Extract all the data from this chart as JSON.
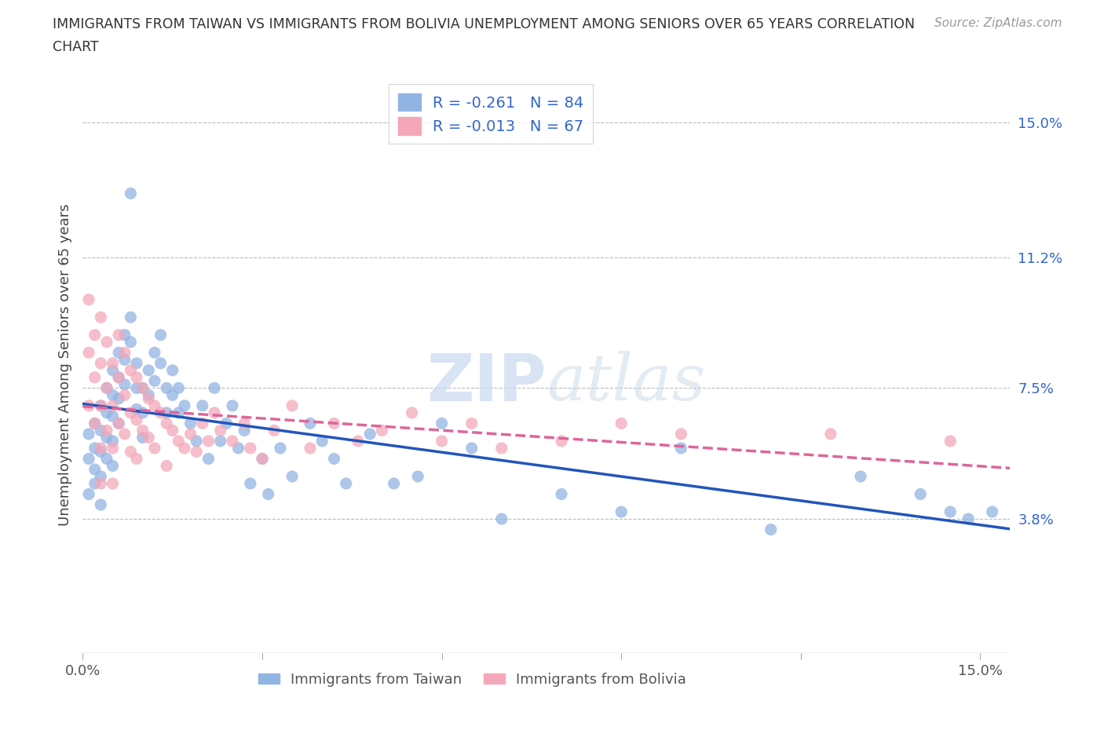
{
  "title_line1": "IMMIGRANTS FROM TAIWAN VS IMMIGRANTS FROM BOLIVIA UNEMPLOYMENT AMONG SENIORS OVER 65 YEARS CORRELATION",
  "title_line2": "CHART",
  "source": "Source: ZipAtlas.com",
  "ylabel_label": "Unemployment Among Seniors over 65 years",
  "ylabel_values": [
    0.038,
    0.075,
    0.112,
    0.15
  ],
  "ylabel_ticks": [
    "3.8%",
    "7.5%",
    "11.2%",
    "15.0%"
  ],
  "xtick_values": [
    0.0,
    0.03,
    0.06,
    0.09,
    0.12,
    0.15
  ],
  "xtick_labels": [
    "0.0%",
    "",
    "",
    "",
    "",
    "15.0%"
  ],
  "xmin": 0.0,
  "xmax": 0.155,
  "ymin": 0.0,
  "ymax": 0.163,
  "taiwan_color": "#92b4e3",
  "bolivia_color": "#f4a7b9",
  "trend_taiwan_color": "#2255bb",
  "trend_bolivia_color": "#dd6699",
  "taiwan_R": -0.261,
  "taiwan_N": 84,
  "bolivia_R": -0.013,
  "bolivia_N": 67,
  "taiwan_label": "Immigrants from Taiwan",
  "bolivia_label": "Immigrants from Bolivia",
  "legend_text_color": "#3366cc",
  "watermark_text": "ZIPatlas",
  "background_color": "#ffffff",
  "grid_color": "#bbbbbb",
  "taiwan_scatter_x": [
    0.001,
    0.001,
    0.001,
    0.002,
    0.002,
    0.002,
    0.002,
    0.003,
    0.003,
    0.003,
    0.003,
    0.003,
    0.004,
    0.004,
    0.004,
    0.004,
    0.005,
    0.005,
    0.005,
    0.005,
    0.005,
    0.006,
    0.006,
    0.006,
    0.006,
    0.007,
    0.007,
    0.007,
    0.008,
    0.008,
    0.008,
    0.009,
    0.009,
    0.009,
    0.01,
    0.01,
    0.01,
    0.011,
    0.011,
    0.012,
    0.012,
    0.013,
    0.013,
    0.014,
    0.014,
    0.015,
    0.015,
    0.016,
    0.016,
    0.017,
    0.018,
    0.019,
    0.02,
    0.021,
    0.022,
    0.023,
    0.024,
    0.025,
    0.026,
    0.027,
    0.028,
    0.03,
    0.031,
    0.033,
    0.035,
    0.038,
    0.04,
    0.042,
    0.044,
    0.048,
    0.052,
    0.056,
    0.06,
    0.065,
    0.07,
    0.08,
    0.09,
    0.1,
    0.115,
    0.13,
    0.14,
    0.145,
    0.148,
    0.152
  ],
  "taiwan_scatter_y": [
    0.062,
    0.055,
    0.045,
    0.065,
    0.058,
    0.052,
    0.048,
    0.07,
    0.063,
    0.057,
    0.05,
    0.042,
    0.075,
    0.068,
    0.061,
    0.055,
    0.08,
    0.073,
    0.067,
    0.06,
    0.053,
    0.085,
    0.078,
    0.072,
    0.065,
    0.09,
    0.083,
    0.076,
    0.13,
    0.095,
    0.088,
    0.082,
    0.075,
    0.069,
    0.075,
    0.068,
    0.061,
    0.08,
    0.073,
    0.085,
    0.077,
    0.09,
    0.082,
    0.075,
    0.068,
    0.08,
    0.073,
    0.075,
    0.068,
    0.07,
    0.065,
    0.06,
    0.07,
    0.055,
    0.075,
    0.06,
    0.065,
    0.07,
    0.058,
    0.063,
    0.048,
    0.055,
    0.045,
    0.058,
    0.05,
    0.065,
    0.06,
    0.055,
    0.048,
    0.062,
    0.048,
    0.05,
    0.065,
    0.058,
    0.038,
    0.045,
    0.04,
    0.058,
    0.035,
    0.05,
    0.045,
    0.04,
    0.038,
    0.04
  ],
  "bolivia_scatter_x": [
    0.001,
    0.001,
    0.001,
    0.002,
    0.002,
    0.002,
    0.003,
    0.003,
    0.003,
    0.003,
    0.003,
    0.004,
    0.004,
    0.004,
    0.005,
    0.005,
    0.005,
    0.005,
    0.006,
    0.006,
    0.006,
    0.007,
    0.007,
    0.007,
    0.008,
    0.008,
    0.008,
    0.009,
    0.009,
    0.009,
    0.01,
    0.01,
    0.011,
    0.011,
    0.012,
    0.012,
    0.013,
    0.014,
    0.014,
    0.015,
    0.016,
    0.017,
    0.018,
    0.019,
    0.02,
    0.021,
    0.022,
    0.023,
    0.025,
    0.027,
    0.028,
    0.03,
    0.032,
    0.035,
    0.038,
    0.042,
    0.046,
    0.05,
    0.055,
    0.06,
    0.065,
    0.07,
    0.08,
    0.09,
    0.1,
    0.125,
    0.145
  ],
  "bolivia_scatter_y": [
    0.1,
    0.085,
    0.07,
    0.09,
    0.078,
    0.065,
    0.095,
    0.082,
    0.07,
    0.058,
    0.048,
    0.088,
    0.075,
    0.063,
    0.082,
    0.07,
    0.058,
    0.048,
    0.09,
    0.078,
    0.065,
    0.085,
    0.073,
    0.062,
    0.08,
    0.068,
    0.057,
    0.078,
    0.066,
    0.055,
    0.075,
    0.063,
    0.072,
    0.061,
    0.07,
    0.058,
    0.068,
    0.065,
    0.053,
    0.063,
    0.06,
    0.058,
    0.062,
    0.057,
    0.065,
    0.06,
    0.068,
    0.063,
    0.06,
    0.065,
    0.058,
    0.055,
    0.063,
    0.07,
    0.058,
    0.065,
    0.06,
    0.063,
    0.068,
    0.06,
    0.065,
    0.058,
    0.06,
    0.065,
    0.062,
    0.062,
    0.06
  ]
}
